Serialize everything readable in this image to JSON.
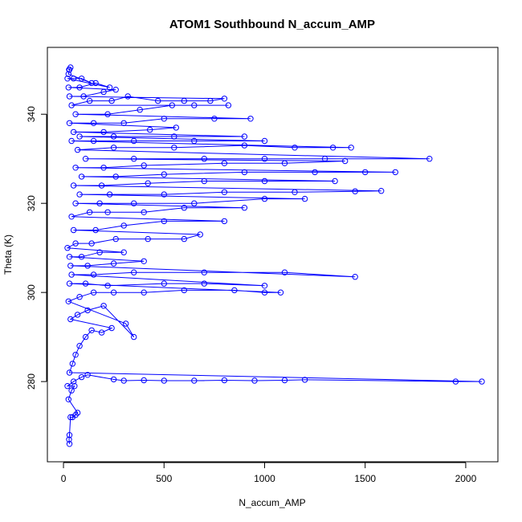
{
  "chart_data": {
    "type": "scatter",
    "title": "ATOM1 Southbound N_accum_AMP",
    "xlabel": "N_accum_AMP",
    "ylabel": "Theta (K)",
    "xlim": [
      -80,
      2160
    ],
    "ylim": [
      262,
      355
    ],
    "xticks": [
      0,
      500,
      1000,
      1500,
      2000
    ],
    "yticks": [
      280,
      300,
      320,
      340
    ],
    "color": "#0000ff",
    "marker": "open-circle",
    "connected": true,
    "grid": false,
    "series": [
      {
        "values": [
          [
            30,
            266
          ],
          [
            28,
            267
          ],
          [
            30,
            268
          ],
          [
            35,
            272
          ],
          [
            45,
            272
          ],
          [
            60,
            272.5
          ],
          [
            70,
            273
          ],
          [
            25,
            276
          ],
          [
            40,
            278
          ],
          [
            55,
            279
          ],
          [
            20,
            279
          ],
          [
            50,
            280
          ],
          [
            90,
            281
          ],
          [
            120,
            281.5
          ],
          [
            250,
            280.5
          ],
          [
            300,
            280.2
          ],
          [
            400,
            280.3
          ],
          [
            500,
            280.2
          ],
          [
            650,
            280.2
          ],
          [
            800,
            280.3
          ],
          [
            950,
            280.2
          ],
          [
            1100,
            280.3
          ],
          [
            1200,
            280.4
          ],
          [
            1950,
            280
          ],
          [
            2080,
            280
          ],
          [
            30,
            282
          ],
          [
            45,
            284
          ],
          [
            60,
            286
          ],
          [
            80,
            288
          ],
          [
            110,
            290
          ],
          [
            140,
            291.5
          ],
          [
            190,
            291
          ],
          [
            240,
            292
          ],
          [
            35,
            294
          ],
          [
            70,
            295
          ],
          [
            120,
            296
          ],
          [
            200,
            297
          ],
          [
            350,
            290
          ],
          [
            310,
            293
          ],
          [
            25,
            298
          ],
          [
            80,
            299
          ],
          [
            150,
            300
          ],
          [
            250,
            300
          ],
          [
            400,
            300
          ],
          [
            600,
            300.5
          ],
          [
            850,
            300.5
          ],
          [
            1000,
            300
          ],
          [
            1080,
            300
          ],
          [
            30,
            302
          ],
          [
            110,
            302
          ],
          [
            220,
            301.5
          ],
          [
            500,
            302
          ],
          [
            700,
            302
          ],
          [
            1000,
            301.5
          ],
          [
            40,
            304
          ],
          [
            150,
            304
          ],
          [
            350,
            304.5
          ],
          [
            700,
            304.5
          ],
          [
            1100,
            304.5
          ],
          [
            1450,
            303.5
          ],
          [
            35,
            306
          ],
          [
            120,
            306
          ],
          [
            250,
            306.5
          ],
          [
            400,
            307
          ],
          [
            30,
            308
          ],
          [
            90,
            308
          ],
          [
            180,
            309
          ],
          [
            300,
            309
          ],
          [
            20,
            310
          ],
          [
            60,
            311
          ],
          [
            140,
            311
          ],
          [
            260,
            312
          ],
          [
            420,
            312
          ],
          [
            600,
            312
          ],
          [
            680,
            313
          ],
          [
            50,
            314
          ],
          [
            160,
            314
          ],
          [
            300,
            315
          ],
          [
            500,
            316
          ],
          [
            800,
            316
          ],
          [
            40,
            317
          ],
          [
            130,
            318
          ],
          [
            220,
            318
          ],
          [
            400,
            318
          ],
          [
            600,
            319
          ],
          [
            900,
            319
          ],
          [
            60,
            320
          ],
          [
            180,
            320
          ],
          [
            350,
            320
          ],
          [
            650,
            320
          ],
          [
            1000,
            321
          ],
          [
            1200,
            321
          ],
          [
            80,
            322
          ],
          [
            230,
            322
          ],
          [
            500,
            322
          ],
          [
            800,
            322.5
          ],
          [
            1150,
            322.5
          ],
          [
            1450,
            322.7
          ],
          [
            1580,
            322.8
          ],
          [
            50,
            324
          ],
          [
            190,
            324
          ],
          [
            420,
            324.5
          ],
          [
            700,
            325
          ],
          [
            1000,
            325
          ],
          [
            1350,
            325
          ],
          [
            90,
            326
          ],
          [
            260,
            326
          ],
          [
            500,
            326.5
          ],
          [
            900,
            327
          ],
          [
            1250,
            327
          ],
          [
            1500,
            327
          ],
          [
            1650,
            327
          ],
          [
            60,
            328
          ],
          [
            200,
            328
          ],
          [
            400,
            328.5
          ],
          [
            800,
            329
          ],
          [
            1100,
            329
          ],
          [
            1400,
            329.5
          ],
          [
            110,
            330
          ],
          [
            350,
            330
          ],
          [
            700,
            330
          ],
          [
            1000,
            330
          ],
          [
            1300,
            330
          ],
          [
            1820,
            330
          ],
          [
            70,
            332
          ],
          [
            250,
            332.5
          ],
          [
            550,
            332.5
          ],
          [
            900,
            333
          ],
          [
            1150,
            332.5
          ],
          [
            1340,
            332.5
          ],
          [
            1430,
            332.5
          ],
          [
            40,
            334
          ],
          [
            150,
            334
          ],
          [
            350,
            334
          ],
          [
            650,
            334
          ],
          [
            1000,
            334
          ],
          [
            80,
            335
          ],
          [
            250,
            335
          ],
          [
            550,
            335
          ],
          [
            900,
            335
          ],
          [
            50,
            336
          ],
          [
            200,
            336
          ],
          [
            430,
            336.5
          ],
          [
            560,
            337
          ],
          [
            30,
            338
          ],
          [
            150,
            338
          ],
          [
            300,
            338
          ],
          [
            500,
            339
          ],
          [
            750,
            339
          ],
          [
            930,
            339
          ],
          [
            60,
            340
          ],
          [
            220,
            340
          ],
          [
            380,
            341
          ],
          [
            540,
            342
          ],
          [
            650,
            342
          ],
          [
            820,
            342
          ],
          [
            40,
            342
          ],
          [
            130,
            343
          ],
          [
            240,
            343
          ],
          [
            320,
            344
          ],
          [
            470,
            343
          ],
          [
            600,
            343
          ],
          [
            730,
            343
          ],
          [
            800,
            343.5
          ],
          [
            30,
            344
          ],
          [
            100,
            344
          ],
          [
            200,
            345
          ],
          [
            260,
            345.5
          ],
          [
            25,
            346
          ],
          [
            80,
            346
          ],
          [
            160,
            347
          ],
          [
            230,
            346
          ],
          [
            20,
            348
          ],
          [
            50,
            348
          ],
          [
            90,
            348
          ],
          [
            140,
            347
          ],
          [
            25,
            349
          ],
          [
            30,
            350
          ],
          [
            35,
            350.5
          ],
          [
            28,
            350
          ]
        ]
      }
    ]
  }
}
